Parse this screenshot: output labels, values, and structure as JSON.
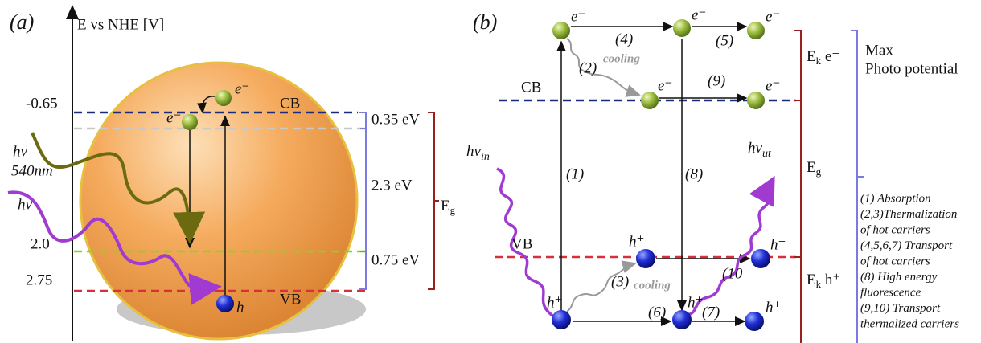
{
  "panel_a": {
    "label": "(a)",
    "axis_title": "E vs NHE [V]",
    "cb_potential": "-0.65",
    "green_level": "2.0",
    "vb_potential": "2.75",
    "cb_label": "CB",
    "vb_label": "VB",
    "electron_1": "e⁻",
    "electron_2": "e⁻",
    "hole": "h⁺",
    "photon_1": {
      "symbol": "hv",
      "wavelength": "540nm"
    },
    "photon_2": "hv",
    "gaps": [
      "0.35 eV",
      "2.3 eV",
      "0.75 eV"
    ],
    "band_gap": {
      "main": "E",
      "sub": "g"
    }
  },
  "panel_b": {
    "label": "(b)",
    "cb_label": "CB",
    "vb_label": "VB",
    "electrons": [
      "e⁻",
      "e⁻",
      "e⁻",
      "e⁻",
      "e⁻"
    ],
    "holes": [
      "h⁺",
      "h⁺",
      "h⁺",
      "h⁺",
      "h⁺"
    ],
    "steps": [
      "(1)",
      "(2)",
      "(3)",
      "(4)",
      "(5)",
      "(6)",
      "(7)",
      "(8)",
      "(9)",
      "(10"
    ],
    "cooling": [
      "cooling",
      "cooling"
    ],
    "photon_in": {
      "main": "hv",
      "sub": "in"
    },
    "photon_out": {
      "main": "hv",
      "sub": "ut"
    },
    "ek_electron": {
      "main": "E",
      "sub": "k",
      "tail": " e⁻"
    },
    "band_gap": {
      "main": "E",
      "sub": "g"
    },
    "ek_hole": {
      "main": "E",
      "sub": "k",
      "tail": " h⁺"
    },
    "max_potential": [
      "Max",
      "Photo potential"
    ],
    "legend": [
      "(1) Absorption",
      "(2,3)Thermalization",
      "of hot carriers",
      "(4,5,6,7) Transport",
      "of hot carriers",
      "(8) High energy",
      "fluorescence",
      "(9,10) Transport",
      "thermalized carriers"
    ]
  }
}
